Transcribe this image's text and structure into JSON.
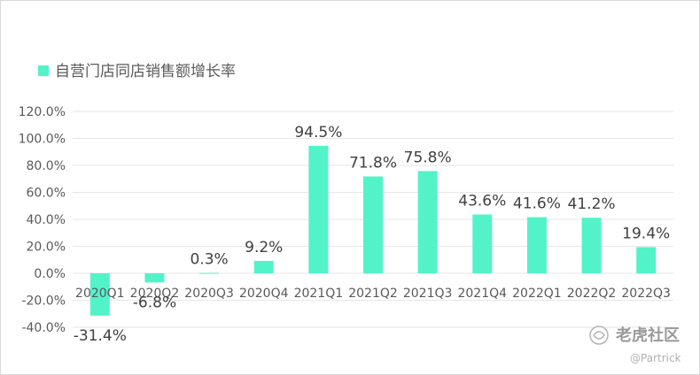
{
  "chart_data": {
    "type": "bar",
    "categories": [
      "2020Q1",
      "2020Q2",
      "2020Q3",
      "2020Q4",
      "2021Q1",
      "2021Q2",
      "2021Q3",
      "2021Q4",
      "2022Q1",
      "2022Q2",
      "2022Q3"
    ],
    "series": [
      {
        "name": "自营门店同店销售额增长率",
        "values": [
          -31.4,
          -6.8,
          0.3,
          9.2,
          94.5,
          71.8,
          75.8,
          43.6,
          41.6,
          41.2,
          19.4
        ],
        "labels": [
          "-31.4%",
          "-6.8%",
          "0.3%",
          "9.2%",
          "94.5%",
          "71.8%",
          "75.8%",
          "43.6%",
          "41.6%",
          "41.2%",
          "19.4%"
        ]
      }
    ],
    "yticks": [
      "120.0%",
      "100.0%",
      "80.0%",
      "60.0%",
      "40.0%",
      "20.0%",
      "0.0%",
      "-20.0%",
      "-40.0%"
    ],
    "ylim": [
      -40,
      120
    ],
    "grid": true,
    "legend_position": "top-left",
    "colors": {
      "bar": "#52f3c9"
    }
  },
  "watermark": {
    "brand": "老虎社区",
    "author": "@Partrick"
  }
}
